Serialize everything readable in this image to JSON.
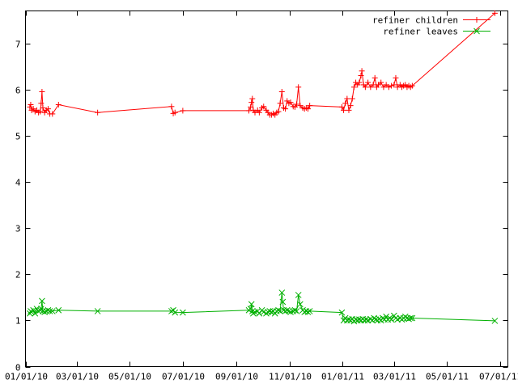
{
  "chart_data": {
    "type": "line",
    "title": "",
    "xlabel": "",
    "ylabel": "",
    "grid": false,
    "legend_position": "top-right",
    "xlim": [
      "2010-01-01",
      "2011-07-10"
    ],
    "ylim": [
      0,
      7.7
    ],
    "x_tick_labels": [
      "01/01/10",
      "03/01/10",
      "05/01/10",
      "07/01/10",
      "09/01/10",
      "11/01/10",
      "01/01/11",
      "03/01/11",
      "05/01/11",
      "07/01/11"
    ],
    "x_tick_dates": [
      "2010-01-01",
      "2010-03-01",
      "2010-05-01",
      "2010-07-01",
      "2010-09-01",
      "2010-11-01",
      "2011-01-01",
      "2011-03-01",
      "2011-05-01",
      "2011-07-01"
    ],
    "y_ticks": [
      0,
      1,
      2,
      3,
      4,
      5,
      6,
      7
    ],
    "series": [
      {
        "name": "refiner children",
        "color": "#ff0000",
        "marker": "plus",
        "points": [
          [
            "2010-01-06",
            5.62
          ],
          [
            "2010-01-07",
            5.67
          ],
          [
            "2010-01-08",
            5.55
          ],
          [
            "2010-01-10",
            5.58
          ],
          [
            "2010-01-12",
            5.52
          ],
          [
            "2010-01-14",
            5.55
          ],
          [
            "2010-01-16",
            5.5
          ],
          [
            "2010-01-18",
            5.52
          ],
          [
            "2010-01-19",
            5.7
          ],
          [
            "2010-01-20",
            5.95
          ],
          [
            "2010-01-21",
            5.6
          ],
          [
            "2010-01-23",
            5.5
          ],
          [
            "2010-01-25",
            5.55
          ],
          [
            "2010-01-27",
            5.58
          ],
          [
            "2010-01-29",
            5.47
          ],
          [
            "2010-02-01",
            5.47
          ],
          [
            "2010-02-08",
            5.67
          ],
          [
            "2010-03-25",
            5.5
          ],
          [
            "2010-06-18",
            5.63
          ],
          [
            "2010-06-20",
            5.48
          ],
          [
            "2010-06-22",
            5.5
          ],
          [
            "2010-07-01",
            5.54
          ],
          [
            "2010-09-15",
            5.54
          ],
          [
            "2010-09-17",
            5.62
          ],
          [
            "2010-09-18",
            5.72
          ],
          [
            "2010-09-19",
            5.8
          ],
          [
            "2010-09-20",
            5.55
          ],
          [
            "2010-09-22",
            5.5
          ],
          [
            "2010-09-25",
            5.55
          ],
          [
            "2010-09-27",
            5.5
          ],
          [
            "2010-09-30",
            5.6
          ],
          [
            "2010-10-02",
            5.63
          ],
          [
            "2010-10-05",
            5.55
          ],
          [
            "2010-10-07",
            5.5
          ],
          [
            "2010-10-09",
            5.45
          ],
          [
            "2010-10-11",
            5.45
          ],
          [
            "2010-10-13",
            5.48
          ],
          [
            "2010-10-15",
            5.45
          ],
          [
            "2010-10-17",
            5.5
          ],
          [
            "2010-10-19",
            5.52
          ],
          [
            "2010-10-21",
            5.7
          ],
          [
            "2010-10-23",
            5.95
          ],
          [
            "2010-10-25",
            5.6
          ],
          [
            "2010-10-27",
            5.58
          ],
          [
            "2010-10-29",
            5.75
          ],
          [
            "2010-10-31",
            5.7
          ],
          [
            "2010-11-02",
            5.72
          ],
          [
            "2010-11-05",
            5.63
          ],
          [
            "2010-11-07",
            5.62
          ],
          [
            "2010-11-09",
            5.68
          ],
          [
            "2010-11-11",
            6.05
          ],
          [
            "2010-11-13",
            5.65
          ],
          [
            "2010-11-16",
            5.6
          ],
          [
            "2010-11-18",
            5.58
          ],
          [
            "2010-11-20",
            5.6
          ],
          [
            "2010-11-22",
            5.58
          ],
          [
            "2010-11-24",
            5.65
          ],
          [
            "2010-12-31",
            5.62
          ],
          [
            "2011-01-02",
            5.55
          ],
          [
            "2011-01-04",
            5.7
          ],
          [
            "2011-01-06",
            5.8
          ],
          [
            "2011-01-08",
            5.55
          ],
          [
            "2011-01-10",
            5.65
          ],
          [
            "2011-01-12",
            5.8
          ],
          [
            "2011-01-14",
            6.05
          ],
          [
            "2011-01-16",
            6.15
          ],
          [
            "2011-01-18",
            6.1
          ],
          [
            "2011-01-20",
            6.15
          ],
          [
            "2011-01-22",
            6.3
          ],
          [
            "2011-01-23",
            6.4
          ],
          [
            "2011-01-25",
            6.1
          ],
          [
            "2011-01-27",
            6.05
          ],
          [
            "2011-01-30",
            6.15
          ],
          [
            "2011-02-02",
            6.05
          ],
          [
            "2011-02-05",
            6.1
          ],
          [
            "2011-02-07",
            6.25
          ],
          [
            "2011-02-09",
            6.05
          ],
          [
            "2011-02-11",
            6.1
          ],
          [
            "2011-02-14",
            6.15
          ],
          [
            "2011-02-17",
            6.05
          ],
          [
            "2011-02-20",
            6.1
          ],
          [
            "2011-02-23",
            6.05
          ],
          [
            "2011-02-26",
            6.08
          ],
          [
            "2011-03-01",
            6.1
          ],
          [
            "2011-03-03",
            6.25
          ],
          [
            "2011-03-05",
            6.05
          ],
          [
            "2011-03-08",
            6.1
          ],
          [
            "2011-03-10",
            6.05
          ],
          [
            "2011-03-12",
            6.08
          ],
          [
            "2011-03-14",
            6.1
          ],
          [
            "2011-03-16",
            6.05
          ],
          [
            "2011-03-18",
            6.08
          ],
          [
            "2011-03-20",
            6.05
          ],
          [
            "2011-03-22",
            6.08
          ],
          [
            "2011-06-25",
            7.65
          ]
        ]
      },
      {
        "name": "refiner leaves",
        "color": "#00b000",
        "marker": "x",
        "points": [
          [
            "2010-01-06",
            1.15
          ],
          [
            "2010-01-07",
            1.2
          ],
          [
            "2010-01-08",
            1.18
          ],
          [
            "2010-01-10",
            1.22
          ],
          [
            "2010-01-12",
            1.15
          ],
          [
            "2010-01-14",
            1.25
          ],
          [
            "2010-01-16",
            1.2
          ],
          [
            "2010-01-18",
            1.22
          ],
          [
            "2010-01-19",
            1.25
          ],
          [
            "2010-01-20",
            1.42
          ],
          [
            "2010-01-21",
            1.2
          ],
          [
            "2010-01-23",
            1.18
          ],
          [
            "2010-01-25",
            1.2
          ],
          [
            "2010-01-27",
            1.22
          ],
          [
            "2010-01-29",
            1.2
          ],
          [
            "2010-02-01",
            1.2
          ],
          [
            "2010-02-08",
            1.22
          ],
          [
            "2010-03-25",
            1.2
          ],
          [
            "2010-06-18",
            1.2
          ],
          [
            "2010-06-20",
            1.22
          ],
          [
            "2010-06-22",
            1.17
          ],
          [
            "2010-07-01",
            1.17
          ],
          [
            "2010-09-15",
            1.22
          ],
          [
            "2010-09-17",
            1.25
          ],
          [
            "2010-09-18",
            1.35
          ],
          [
            "2010-09-19",
            1.2
          ],
          [
            "2010-09-20",
            1.15
          ],
          [
            "2010-09-22",
            1.18
          ],
          [
            "2010-09-25",
            1.2
          ],
          [
            "2010-09-27",
            1.15
          ],
          [
            "2010-09-30",
            1.22
          ],
          [
            "2010-10-02",
            1.18
          ],
          [
            "2010-10-05",
            1.15
          ],
          [
            "2010-10-07",
            1.18
          ],
          [
            "2010-10-09",
            1.2
          ],
          [
            "2010-10-11",
            1.18
          ],
          [
            "2010-10-13",
            1.2
          ],
          [
            "2010-10-15",
            1.15
          ],
          [
            "2010-10-17",
            1.2
          ],
          [
            "2010-10-19",
            1.22
          ],
          [
            "2010-10-21",
            1.2
          ],
          [
            "2010-10-23",
            1.6
          ],
          [
            "2010-10-24",
            1.4
          ],
          [
            "2010-10-25",
            1.22
          ],
          [
            "2010-10-27",
            1.2
          ],
          [
            "2010-10-29",
            1.22
          ],
          [
            "2010-10-31",
            1.2
          ],
          [
            "2010-11-02",
            1.18
          ],
          [
            "2010-11-05",
            1.2
          ],
          [
            "2010-11-07",
            1.22
          ],
          [
            "2010-11-09",
            1.2
          ],
          [
            "2010-11-11",
            1.55
          ],
          [
            "2010-11-13",
            1.35
          ],
          [
            "2010-11-16",
            1.22
          ],
          [
            "2010-11-18",
            1.18
          ],
          [
            "2010-11-20",
            1.2
          ],
          [
            "2010-11-22",
            1.18
          ],
          [
            "2010-11-24",
            1.2
          ],
          [
            "2010-12-31",
            1.17
          ],
          [
            "2011-01-02",
            1.0
          ],
          [
            "2011-01-04",
            1.05
          ],
          [
            "2011-01-06",
            1.0
          ],
          [
            "2011-01-08",
            1.02
          ],
          [
            "2011-01-10",
            1.0
          ],
          [
            "2011-01-12",
            1.03
          ],
          [
            "2011-01-14",
            0.98
          ],
          [
            "2011-01-16",
            1.02
          ],
          [
            "2011-01-18",
            1.0
          ],
          [
            "2011-01-20",
            1.02
          ],
          [
            "2011-01-22",
            1.0
          ],
          [
            "2011-01-24",
            1.03
          ],
          [
            "2011-01-26",
            1.0
          ],
          [
            "2011-01-28",
            1.02
          ],
          [
            "2011-01-30",
            1.0
          ],
          [
            "2011-02-02",
            1.03
          ],
          [
            "2011-02-04",
            1.0
          ],
          [
            "2011-02-06",
            1.05
          ],
          [
            "2011-02-08",
            1.02
          ],
          [
            "2011-02-10",
            1.0
          ],
          [
            "2011-02-12",
            1.03
          ],
          [
            "2011-02-14",
            1.0
          ],
          [
            "2011-02-16",
            1.05
          ],
          [
            "2011-02-18",
            1.02
          ],
          [
            "2011-02-20",
            1.08
          ],
          [
            "2011-02-22",
            1.02
          ],
          [
            "2011-02-24",
            1.05
          ],
          [
            "2011-02-26",
            1.02
          ],
          [
            "2011-03-01",
            1.1
          ],
          [
            "2011-03-03",
            1.05
          ],
          [
            "2011-03-05",
            1.02
          ],
          [
            "2011-03-08",
            1.05
          ],
          [
            "2011-03-10",
            1.02
          ],
          [
            "2011-03-12",
            1.05
          ],
          [
            "2011-03-14",
            1.08
          ],
          [
            "2011-03-16",
            1.05
          ],
          [
            "2011-03-18",
            1.03
          ],
          [
            "2011-03-20",
            1.05
          ],
          [
            "2011-03-22",
            1.05
          ],
          [
            "2011-06-25",
            0.99
          ]
        ]
      }
    ]
  }
}
